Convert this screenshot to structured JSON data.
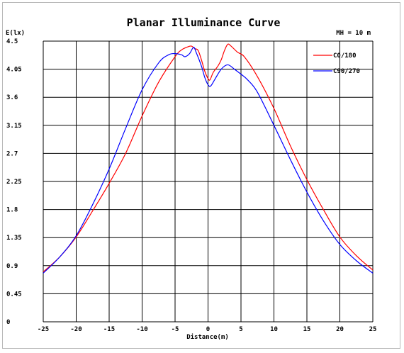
{
  "chart_data": {
    "type": "line",
    "title": "Planar Illuminance Curve",
    "ylabel": "E(lx)",
    "xlabel": "Distance(m)",
    "note": "MH = 10 m",
    "xlim": [
      -25,
      25
    ],
    "ylim": [
      0,
      4.5
    ],
    "grid": true,
    "legend_position": "top-right",
    "x_ticks": [
      "-25",
      "-20",
      "-15",
      "-10",
      "-5",
      "0",
      "5",
      "10",
      "15",
      "20",
      "25"
    ],
    "y_ticks": [
      "0",
      "0.45",
      "0.9",
      "1.35",
      "1.8",
      "2.25",
      "2.7",
      "3.15",
      "3.6",
      "4.05",
      "4.5"
    ],
    "series": [
      {
        "name": "C0/180",
        "color": "#ff0000",
        "points": [
          [
            -25,
            0.8
          ],
          [
            -22.5,
            1.04
          ],
          [
            -20,
            1.36
          ],
          [
            -17.5,
            1.78
          ],
          [
            -15,
            2.22
          ],
          [
            -12.5,
            2.7
          ],
          [
            -10,
            3.3
          ],
          [
            -7.5,
            3.84
          ],
          [
            -5,
            4.25
          ],
          [
            -4,
            4.36
          ],
          [
            -3,
            4.41
          ],
          [
            -2.5,
            4.42
          ],
          [
            -2,
            4.38
          ],
          [
            -1.5,
            4.35
          ],
          [
            -1,
            4.2
          ],
          [
            -0.5,
            4.02
          ],
          [
            0,
            3.9
          ],
          [
            0.3,
            3.88
          ],
          [
            0.8,
            4.0
          ],
          [
            1.5,
            4.1
          ],
          [
            2,
            4.2
          ],
          [
            2.5,
            4.35
          ],
          [
            3,
            4.45
          ],
          [
            3.5,
            4.42
          ],
          [
            4.5,
            4.32
          ],
          [
            5.5,
            4.25
          ],
          [
            7.5,
            3.93
          ],
          [
            10,
            3.42
          ],
          [
            12.5,
            2.82
          ],
          [
            15,
            2.28
          ],
          [
            17.5,
            1.8
          ],
          [
            20,
            1.36
          ],
          [
            22.5,
            1.06
          ],
          [
            25,
            0.83
          ]
        ]
      },
      {
        "name": "C90/270",
        "color": "#0000ff",
        "points": [
          [
            -25,
            0.78
          ],
          [
            -22.5,
            1.04
          ],
          [
            -20,
            1.38
          ],
          [
            -17.5,
            1.88
          ],
          [
            -15,
            2.45
          ],
          [
            -12.5,
            3.1
          ],
          [
            -10,
            3.72
          ],
          [
            -7.5,
            4.15
          ],
          [
            -6,
            4.28
          ],
          [
            -5,
            4.3
          ],
          [
            -4,
            4.28
          ],
          [
            -3.5,
            4.25
          ],
          [
            -2.8,
            4.3
          ],
          [
            -2.2,
            4.4
          ],
          [
            -1.8,
            4.32
          ],
          [
            -1,
            4.1
          ],
          [
            -0.5,
            3.92
          ],
          [
            0,
            3.8
          ],
          [
            0.4,
            3.78
          ],
          [
            1,
            3.88
          ],
          [
            2,
            4.05
          ],
          [
            3,
            4.12
          ],
          [
            4,
            4.05
          ],
          [
            5,
            3.97
          ],
          [
            6,
            3.88
          ],
          [
            7.5,
            3.68
          ],
          [
            10,
            3.15
          ],
          [
            12.5,
            2.6
          ],
          [
            15,
            2.08
          ],
          [
            17.5,
            1.62
          ],
          [
            20,
            1.24
          ],
          [
            22.5,
            0.98
          ],
          [
            25,
            0.78
          ]
        ]
      }
    ]
  }
}
